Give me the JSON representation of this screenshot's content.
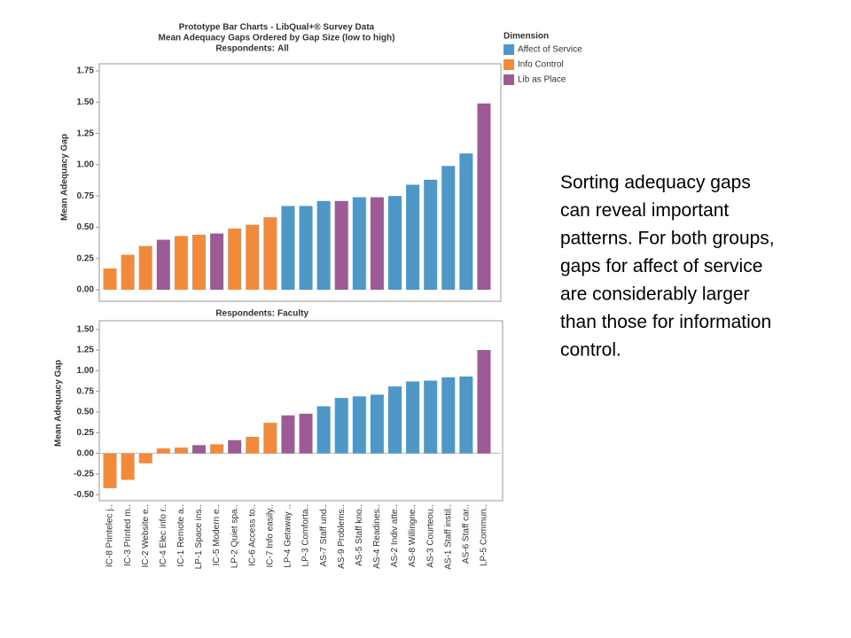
{
  "chart_data": [
    {
      "type": "bar",
      "title": "Prototype Bar Charts - LibQual+® Survey Data",
      "subtitle": "Mean Adequacy Gaps Ordered by Gap Size (low to high)",
      "respondents_label": "Respondents:",
      "respondents": "All",
      "ylabel": "Mean Adequacy Gap",
      "categories": [
        null,
        null,
        null,
        null,
        null,
        null,
        null,
        null,
        null,
        null,
        null,
        null,
        null,
        null,
        null,
        null,
        null,
        null,
        null,
        null,
        null,
        null
      ],
      "values": [
        0.17,
        0.28,
        0.35,
        0.4,
        0.43,
        0.44,
        0.45,
        0.49,
        0.52,
        0.58,
        0.67,
        0.67,
        0.71,
        0.71,
        0.74,
        0.74,
        0.75,
        0.84,
        0.88,
        0.99,
        1.09,
        1.49
      ],
      "colors": [
        "#f28a3c",
        "#f28a3c",
        "#f28a3c",
        "#9c5b95",
        "#f28a3c",
        "#f28a3c",
        "#9c5b95",
        "#f28a3c",
        "#f28a3c",
        "#f28a3c",
        "#4f97c6",
        "#4f97c6",
        "#4f97c6",
        "#9c5b95",
        "#4f97c6",
        "#9c5b95",
        "#4f97c6",
        "#4f97c6",
        "#4f97c6",
        "#4f97c6",
        "#4f97c6",
        "#9c5b95"
      ],
      "ylim": [
        0,
        1.8
      ],
      "yticks": [
        {
          "value": 0,
          "label": "0.00"
        },
        {
          "value": 0.25,
          "label": "0.25"
        },
        {
          "value": 0.5,
          "label": "0.50"
        },
        {
          "value": 0.75,
          "label": "0.75"
        },
        {
          "value": 1,
          "label": "1.00"
        },
        {
          "value": 1.25,
          "label": "1.25"
        },
        {
          "value": 1.5,
          "label": "1.50"
        },
        {
          "value": 1.75,
          "label": "1.75"
        }
      ],
      "legend": {
        "title": "Dimension",
        "items": [
          {
            "name": "Affect of Service",
            "color": "#4f97c6"
          },
          {
            "name": "Info Control",
            "color": "#f28a3c"
          },
          {
            "name": "Lib as Place",
            "color": "#9c5b95"
          }
        ]
      }
    },
    {
      "type": "bar",
      "respondents_label": "Respondents:",
      "respondents": "Faculty",
      "ylabel": "Mean Adequacy Gap",
      "categories": [
        "IC-8 Printelec j..",
        "IC-3 Printed m..",
        "IC-2 Website e..",
        "IC-4 Elec info r..",
        "IC-1 Remote a..",
        "LP-1 Space ins..",
        "IC-5 Modern e..",
        "LP-2 Quiet spa..",
        "IC-6 Access to..",
        "IC-7 Info easily..",
        "LP-4 Getaway ..",
        "LP-3 Comforta..",
        "AS-7 Staff und..",
        "AS-9 Problems..",
        "AS-5 Staff kno..",
        "AS-4 Readines..",
        "AS-2 Indiv atte..",
        "AS-8 Willingne..",
        "AS-3 Courteou..",
        "AS-1 Staff instil..",
        "AS-6 Staff car..",
        "LP-5 Commun.."
      ],
      "values": [
        -0.42,
        -0.32,
        -0.12,
        0.06,
        0.07,
        0.1,
        0.11,
        0.16,
        0.2,
        0.37,
        0.46,
        0.48,
        0.57,
        0.67,
        0.69,
        0.71,
        0.81,
        0.87,
        0.88,
        0.92,
        0.93,
        1.25
      ],
      "colors": [
        "#f28a3c",
        "#f28a3c",
        "#f28a3c",
        "#f28a3c",
        "#f28a3c",
        "#9c5b95",
        "#f28a3c",
        "#9c5b95",
        "#f28a3c",
        "#f28a3c",
        "#9c5b95",
        "#9c5b95",
        "#4f97c6",
        "#4f97c6",
        "#4f97c6",
        "#4f97c6",
        "#4f97c6",
        "#4f97c6",
        "#4f97c6",
        "#4f97c6",
        "#4f97c6",
        "#9c5b95"
      ],
      "ylim": [
        -0.55,
        1.55
      ],
      "yticks": [
        {
          "value": -0.5,
          "label": "-0.50"
        },
        {
          "value": -0.25,
          "label": "-0.25"
        },
        {
          "value": 0,
          "label": "0.00"
        },
        {
          "value": 0.25,
          "label": "0.25"
        },
        {
          "value": 0.5,
          "label": "0.50"
        },
        {
          "value": 0.75,
          "label": "0.75"
        },
        {
          "value": 1,
          "label": "1.00"
        },
        {
          "value": 1.25,
          "label": "1.25"
        },
        {
          "value": 1.5,
          "label": "1.50"
        }
      ]
    }
  ],
  "note": {
    "lines": [
      "Sorting adequacy gaps",
      "can reveal important",
      "patterns.  For both groups,",
      "gaps for affect of service",
      "are considerably larger",
      "than those for information",
      "control."
    ]
  }
}
